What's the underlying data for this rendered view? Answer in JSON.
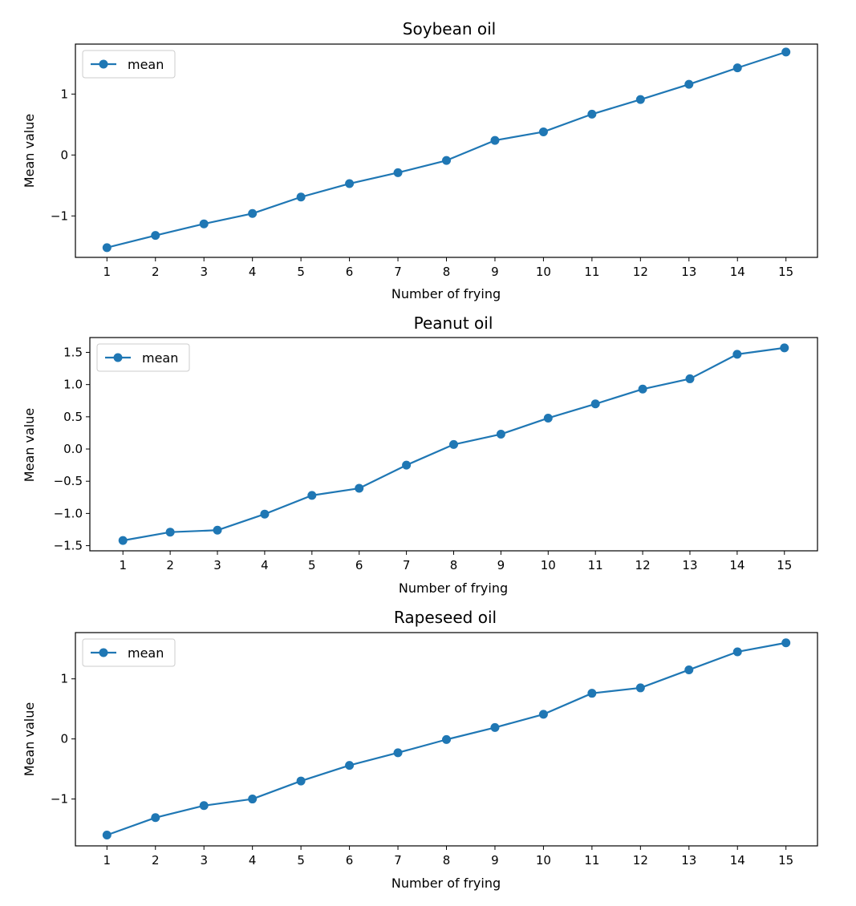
{
  "chart_data": [
    {
      "type": "line",
      "title": "Soybean oil",
      "xlabel": "Number of frying",
      "ylabel": "Mean value",
      "x": [
        1,
        2,
        3,
        4,
        5,
        6,
        7,
        8,
        9,
        10,
        11,
        12,
        13,
        14,
        15
      ],
      "x_tick_labels": [
        "1",
        "2",
        "3",
        "4",
        "5",
        "6",
        "7",
        "8",
        "9",
        "10",
        "11",
        "12",
        "13",
        "14",
        "15"
      ],
      "xlim": [
        0.35,
        15.65
      ],
      "ylim": [
        -1.68,
        1.82
      ],
      "y_ticks": [
        -1,
        0,
        1
      ],
      "y_tick_labels": [
        "−1",
        "0",
        "1"
      ],
      "legend_position": "upper-left",
      "series": [
        {
          "name": "mean",
          "color": "#1f77b4",
          "marker": "circle",
          "values": [
            -1.52,
            -1.32,
            -1.13,
            -0.96,
            -0.69,
            -0.47,
            -0.29,
            -0.09,
            0.24,
            0.38,
            0.67,
            0.91,
            1.16,
            1.43,
            1.69
          ]
        }
      ]
    },
    {
      "type": "line",
      "title": "Peanut oil",
      "xlabel": "Number of frying",
      "ylabel": "Mean value",
      "x": [
        1,
        2,
        3,
        4,
        5,
        6,
        7,
        8,
        9,
        10,
        11,
        12,
        13,
        14,
        15
      ],
      "x_tick_labels": [
        "1",
        "2",
        "3",
        "4",
        "5",
        "6",
        "7",
        "8",
        "9",
        "10",
        "11",
        "12",
        "13",
        "14",
        "15"
      ],
      "xlim": [
        0.3,
        15.7
      ],
      "ylim": [
        -1.58,
        1.73
      ],
      "y_ticks": [
        -1.5,
        -1.0,
        -0.5,
        0.0,
        0.5,
        1.0,
        1.5
      ],
      "y_tick_labels": [
        "−1.5",
        "−1.0",
        "−0.5",
        "0.0",
        "0.5",
        "1.0",
        "1.5"
      ],
      "legend_position": "upper-left",
      "series": [
        {
          "name": "mean",
          "color": "#1f77b4",
          "marker": "circle",
          "values": [
            -1.42,
            -1.29,
            -1.26,
            -1.01,
            -0.72,
            -0.61,
            -0.25,
            0.07,
            0.23,
            0.48,
            0.7,
            0.93,
            1.09,
            1.47,
            1.57
          ]
        }
      ]
    },
    {
      "type": "line",
      "title": "Rapeseed oil",
      "xlabel": "Number of frying",
      "ylabel": "Mean value",
      "x": [
        1,
        2,
        3,
        4,
        5,
        6,
        7,
        8,
        9,
        10,
        11,
        12,
        13,
        14,
        15
      ],
      "x_tick_labels": [
        "1",
        "2",
        "3",
        "4",
        "5",
        "6",
        "7",
        "8",
        "9",
        "10",
        "11",
        "12",
        "13",
        "14",
        "15"
      ],
      "xlim": [
        0.35,
        15.65
      ],
      "ylim": [
        -1.78,
        1.77
      ],
      "y_ticks": [
        -1,
        0,
        1
      ],
      "y_tick_labels": [
        "−1",
        "0",
        "1"
      ],
      "legend_position": "upper-left",
      "series": [
        {
          "name": "mean",
          "color": "#1f77b4",
          "marker": "circle",
          "values": [
            -1.6,
            -1.31,
            -1.11,
            -1.0,
            -0.7,
            -0.44,
            -0.23,
            -0.01,
            0.19,
            0.41,
            0.76,
            0.85,
            1.15,
            1.45,
            1.6
          ]
        }
      ]
    }
  ]
}
